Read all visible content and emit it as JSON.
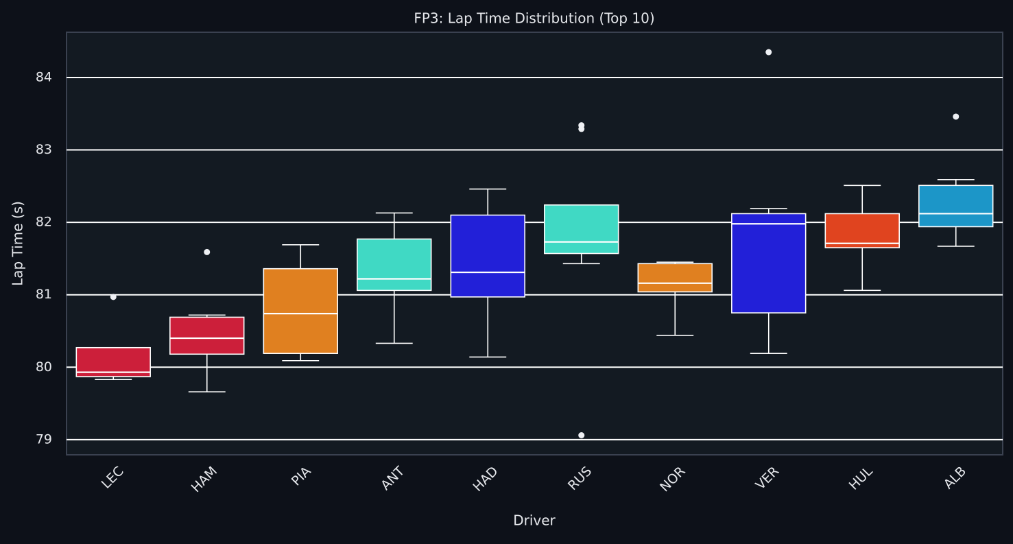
{
  "chart_data": {
    "type": "box",
    "title": "FP3: Lap Time Distribution (Top 10)",
    "x_label": "Driver",
    "y_label": "Lap Time (s)",
    "categories": [
      "LEC",
      "HAM",
      "PIA",
      "ANT",
      "HAD",
      "RUS",
      "NOR",
      "VER",
      "HUL",
      "ALB"
    ],
    "colors": [
      "#cc1f3a",
      "#cc1f3a",
      "#e08020",
      "#40d9c4",
      "#2220d8",
      "#40d9c4",
      "#e08020",
      "#2220d8",
      "#e0441f",
      "#1c96c8"
    ],
    "boxes": [
      {
        "min": 79.83,
        "q1": 79.87,
        "median": 79.93,
        "q3": 80.27,
        "max": 80.27,
        "outliers": [
          80.97
        ]
      },
      {
        "min": 79.66,
        "q1": 80.18,
        "median": 80.4,
        "q3": 80.69,
        "max": 80.72,
        "outliers": [
          81.59
        ]
      },
      {
        "min": 80.09,
        "q1": 80.19,
        "median": 80.74,
        "q3": 81.36,
        "max": 81.69,
        "outliers": []
      },
      {
        "min": 80.33,
        "q1": 81.06,
        "median": 81.22,
        "q3": 81.77,
        "max": 82.13,
        "outliers": []
      },
      {
        "min": 80.14,
        "q1": 80.97,
        "median": 81.31,
        "q3": 82.1,
        "max": 82.46,
        "outliers": []
      },
      {
        "min": 81.43,
        "q1": 81.57,
        "median": 81.73,
        "q3": 82.24,
        "max": 82.24,
        "outliers": [
          83.34,
          83.29,
          79.06
        ]
      },
      {
        "min": 80.44,
        "q1": 81.04,
        "median": 81.16,
        "q3": 81.43,
        "max": 81.45,
        "outliers": []
      },
      {
        "min": 80.19,
        "q1": 80.75,
        "median": 81.98,
        "q3": 82.12,
        "max": 82.19,
        "outliers": [
          84.35
        ]
      },
      {
        "min": 81.06,
        "q1": 81.65,
        "median": 81.71,
        "q3": 82.12,
        "max": 82.51,
        "outliers": []
      },
      {
        "min": 81.67,
        "q1": 81.94,
        "median": 82.12,
        "q3": 82.51,
        "max": 82.59,
        "outliers": [
          83.46
        ]
      }
    ],
    "ylim": [
      78.79,
      84.625
    ],
    "yticks": [
      79,
      80,
      81,
      82,
      83,
      84
    ],
    "grid": true
  }
}
